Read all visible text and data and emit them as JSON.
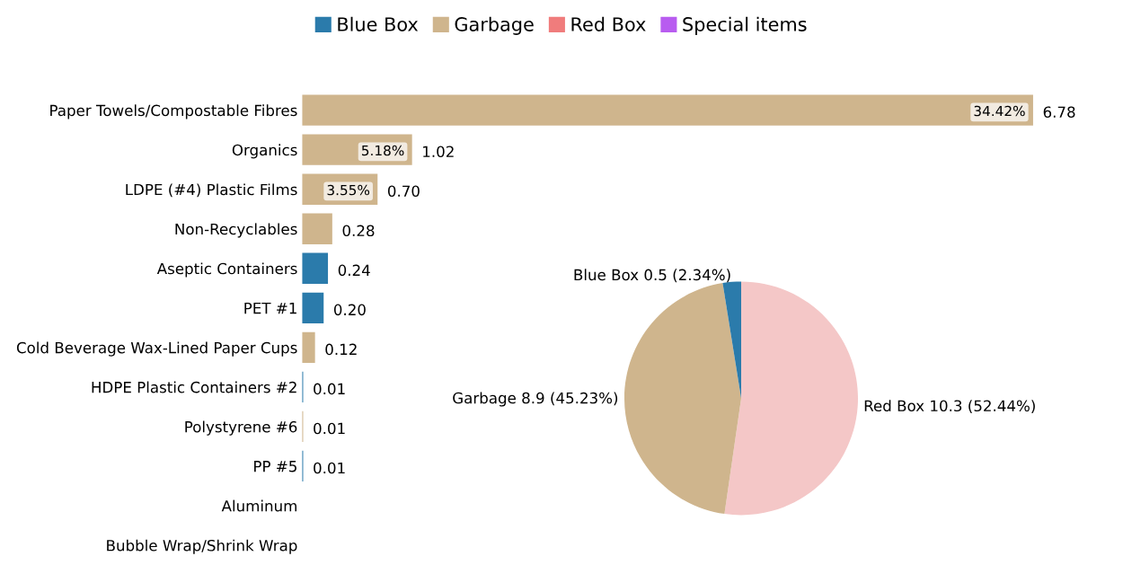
{
  "chart_data": [
    {
      "type": "bar",
      "orientation": "horizontal",
      "legend": "top",
      "categories": [
        "Paper Towels/Compostable Fibres",
        "Organics",
        "LDPE (#4) Plastic Films",
        "Non-Recyclables",
        "Aseptic Containers",
        "PET #1",
        "Cold Beverage Wax-Lined Paper Cups",
        "HDPE Plastic Containers #2",
        "Polystyrene #6",
        "PP #5",
        "Aluminum",
        "Bubble Wrap/Shrink Wrap"
      ],
      "series": [
        {
          "name": "Blue Box",
          "color": "#2b7bab",
          "values": [
            null,
            null,
            null,
            null,
            0.24,
            0.2,
            null,
            0.01,
            null,
            0.01,
            null,
            null
          ],
          "value_labels": [
            null,
            null,
            null,
            null,
            "0.24",
            "0.20",
            null,
            "0.01",
            null,
            "0.01",
            null,
            null
          ]
        },
        {
          "name": "Garbage",
          "color": "#cfb58d",
          "values": [
            6.78,
            1.02,
            0.7,
            0.28,
            null,
            null,
            0.12,
            null,
            0.01,
            null,
            null,
            null
          ],
          "value_labels": [
            "6.78",
            "1.02",
            "0.70",
            "0.28",
            null,
            null,
            "0.12",
            null,
            "0.01",
            null,
            null,
            null
          ]
        },
        {
          "name": "Red Box",
          "color": "#f07c7c",
          "values": [
            null,
            null,
            null,
            null,
            null,
            null,
            null,
            null,
            null,
            null,
            null,
            null
          ]
        },
        {
          "name": "Special items",
          "color": "#b85cf0",
          "values": [
            null,
            null,
            null,
            null,
            null,
            null,
            null,
            null,
            null,
            null,
            null,
            null
          ]
        }
      ],
      "annotations": [
        {
          "text": "34.42%",
          "y": "Paper Towels/Compostable Fibres",
          "x": 6.78
        },
        {
          "text": "5.18%",
          "y": "Organics",
          "x": 1.02
        },
        {
          "text": "3.55%",
          "y": "LDPE (#4) Plastic Films",
          "x": 0.7
        }
      ]
    },
    {
      "type": "pie",
      "categories": [
        "Red Box",
        "Garbage",
        "Blue Box"
      ],
      "values": [
        10.3,
        8.9,
        0.5
      ],
      "colors": [
        "#f4c7c7",
        "#cfb58d",
        "#2b7bab"
      ],
      "value_labels": [
        "10.3 (52.44%)",
        "8.9 (45.23%)",
        "0.5 (2.34%)"
      ]
    }
  ]
}
